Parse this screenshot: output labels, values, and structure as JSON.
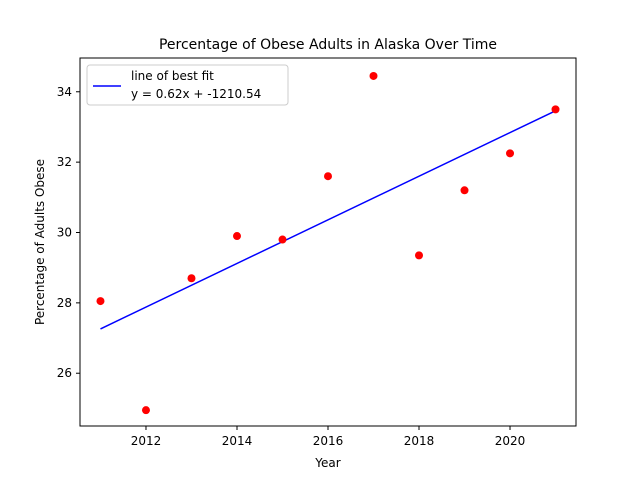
{
  "chart_data": {
    "type": "scatter",
    "title": "Percentage of Obese Adults in Alaska Over Time",
    "xlabel": "Year",
    "ylabel": "Percentage of Adults Obese",
    "xlim": [
      2010.55,
      2021.45
    ],
    "ylim": [
      24.5,
      34.96
    ],
    "xticks": [
      2012,
      2014,
      2016,
      2018,
      2020
    ],
    "yticks": [
      26,
      28,
      30,
      32,
      34
    ],
    "grid": false,
    "legend_position": "upper-left",
    "series": [
      {
        "kind": "scatter",
        "color": "#ff0000",
        "x": [
          2011,
          2012,
          2013,
          2014,
          2015,
          2016,
          2017,
          2018,
          2019,
          2020,
          2021
        ],
        "y": [
          28.05,
          24.95,
          28.7,
          29.9,
          29.8,
          31.6,
          34.45,
          29.35,
          31.2,
          32.25,
          33.5
        ]
      },
      {
        "kind": "line",
        "name": "line of best fit",
        "color": "#0000ff",
        "x": [
          2011,
          2021
        ],
        "y": [
          27.26,
          33.46
        ]
      }
    ],
    "legend_equation": "y = 0.62x + -1210.54"
  }
}
